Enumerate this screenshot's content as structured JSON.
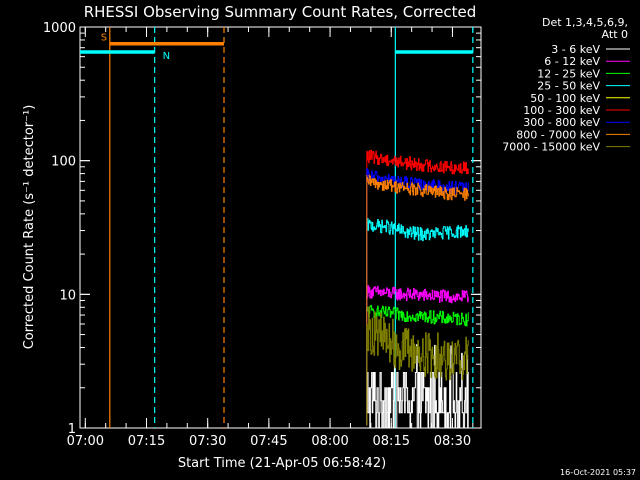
{
  "chart_data": {
    "type": "line",
    "title": "RHESSI Observing Summary Count Rates, Corrected",
    "xlabel": "Start Time (21-Apr-05 06:58:42)",
    "ylabel": "Corrected Count Rate (s⁻¹ detector⁻¹)",
    "yscale": "log",
    "xlim": [
      "06:58:42",
      "08:37:00"
    ],
    "ylim": [
      1,
      1000
    ],
    "x_ticks": [
      "07:00",
      "07:15",
      "07:30",
      "07:45",
      "08:00",
      "08:15",
      "08:30"
    ],
    "y_ticks": [
      "1",
      "10",
      "100",
      "1000"
    ],
    "detectors": "Det 1,3,4,5,6,9,",
    "attenuator": "Att 0",
    "timestamp": "16-Oct-2021 05:37",
    "legend_position": "right",
    "series": [
      {
        "name": "3 - 6 keV",
        "color": "#ffffff",
        "x": [
          "08:09",
          "08:14",
          "08:19",
          "08:24",
          "08:29",
          "08:34"
        ],
        "values": [
          1.4,
          1.6,
          1.4,
          1.5,
          1.4,
          1.4
        ]
      },
      {
        "name": "6 - 12 keV",
        "color": "#ff00ff",
        "x": [
          "08:09",
          "08:14",
          "08:19",
          "08:24",
          "08:29",
          "08:34"
        ],
        "values": [
          10.5,
          10.2,
          10.0,
          9.8,
          9.6,
          9.5
        ]
      },
      {
        "name": "12 - 25 keV",
        "color": "#00ff00",
        "x": [
          "08:09",
          "08:14",
          "08:19",
          "08:24",
          "08:29",
          "08:34"
        ],
        "values": [
          7.5,
          7.2,
          7.0,
          6.8,
          6.6,
          6.5
        ]
      },
      {
        "name": "25 - 50 keV",
        "color": "#00ffff",
        "x": [
          "08:09",
          "08:14",
          "08:19",
          "08:24",
          "08:29",
          "08:34"
        ],
        "values": [
          33,
          32,
          29,
          28,
          29,
          30
        ]
      },
      {
        "name": "50 - 100 keV",
        "color": "#ffff00",
        "x": [],
        "values": []
      },
      {
        "name": "100 - 300 keV",
        "color": "#ff0000",
        "x": [
          "08:09",
          "08:14",
          "08:19",
          "08:24",
          "08:29",
          "08:34"
        ],
        "values": [
          108,
          102,
          96,
          92,
          89,
          88
        ]
      },
      {
        "name": "300 - 800 keV",
        "color": "#0000ff",
        "x": [
          "08:09",
          "08:14",
          "08:19",
          "08:24",
          "08:29",
          "08:34"
        ],
        "values": [
          78,
          72,
          68,
          65,
          63,
          62
        ]
      },
      {
        "name": "800 - 7000 keV",
        "color": "#ff8000",
        "x": [
          "08:09",
          "08:14",
          "08:19",
          "08:24",
          "08:29",
          "08:34"
        ],
        "values": [
          70,
          66,
          62,
          59,
          57,
          56
        ]
      },
      {
        "name": "7000 - 15000 keV",
        "color": "#808000",
        "x": [
          "08:09",
          "08:14",
          "08:19",
          "08:24",
          "08:29",
          "08:34"
        ],
        "values": [
          5.5,
          4.6,
          3.8,
          3.5,
          3.4,
          3.3
        ]
      }
    ],
    "annotations": [
      {
        "label": "S",
        "color": "#ff8000",
        "start": "07:06",
        "end": "07:34",
        "value": 750
      },
      {
        "label": "N",
        "color": "#00ffff",
        "start": "06:58:42",
        "end": "07:17",
        "value": 650
      },
      {
        "label": "",
        "color": "#00ffff",
        "start": "08:16",
        "end": "08:35",
        "value": 650
      }
    ],
    "markers": [
      {
        "time": "07:06",
        "color": "#ff8000",
        "style": "solid"
      },
      {
        "time": "07:34",
        "color": "#ff8000",
        "style": "dashed"
      },
      {
        "time": "07:17",
        "color": "#00ffff",
        "style": "dashed"
      },
      {
        "time": "08:16",
        "color": "#00ffff",
        "style": "solid"
      },
      {
        "time": "08:35",
        "color": "#00ffff",
        "style": "dashed"
      }
    ]
  }
}
